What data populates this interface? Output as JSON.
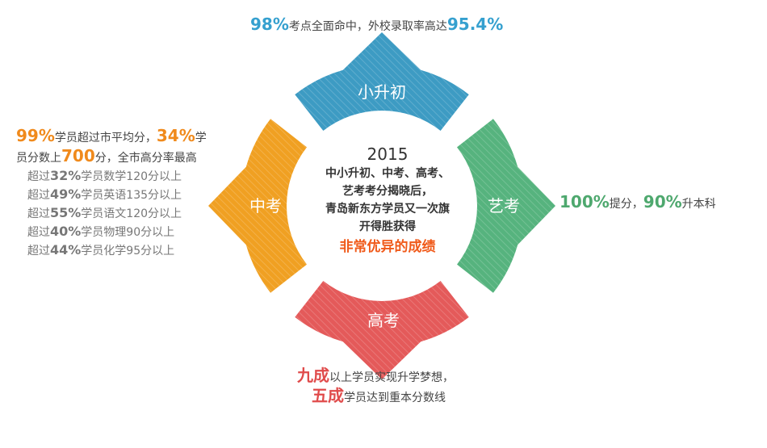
{
  "colors": {
    "top": "#3d9bc3",
    "right": "#56b37e",
    "bottom": "#e45a5a",
    "left": "#f0a022",
    "highlight": "#f05a1a"
  },
  "segments": {
    "top": "小升初",
    "right": "艺考",
    "bottom": "高考",
    "left": "中考"
  },
  "center": {
    "year": "2015",
    "lines": [
      "中小升初、中考、高考、",
      "艺考考分揭晓后，",
      "青岛新东方学员又一次旗",
      "开得胜获得"
    ],
    "highlight": "非常优异的成绩"
  },
  "top_callout": {
    "v1": "98%",
    "t1": "考点全面命中，外校录取率高达",
    "v2": "95.4%"
  },
  "right_callout": {
    "v1": "100%",
    "t1": "提分，",
    "v2": "90%",
    "t2": "升本科"
  },
  "bottom_callout": {
    "v1": "九成",
    "t1": "以上学员实现升学梦想，",
    "v2": "五成",
    "t2": "学员达到重本分数线"
  },
  "left_callout": {
    "v1": "99%",
    "t1": "学员超过市平均分，",
    "v2": "34%",
    "t2": "学",
    "t3": "员分数上",
    "v3": "700",
    "t4": "分，全市高分率最高",
    "rows": [
      {
        "pre": "超过",
        "v": "32%",
        "post": "学员数学120分以上"
      },
      {
        "pre": "超过",
        "v": "49%",
        "post": "学员英语135分以上"
      },
      {
        "pre": "超过",
        "v": "55%",
        "post": "学员语文120分以上"
      },
      {
        "pre": "超过",
        "v": "40%",
        "post": "学员物理90分以上"
      },
      {
        "pre": "超过",
        "v": "44%",
        "post": "学员化学95分以上"
      }
    ]
  }
}
